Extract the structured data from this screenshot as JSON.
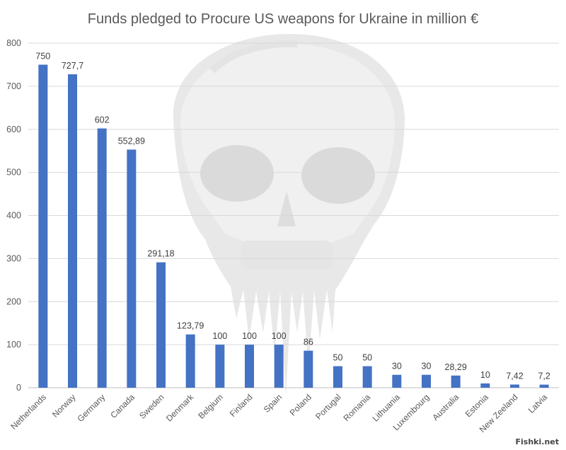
{
  "chart_data": {
    "type": "bar",
    "title": "Funds pledged to Procure US weapons for Ukraine in million €",
    "xlabel": "",
    "ylabel": "",
    "ylim": [
      0,
      800
    ],
    "yticks": [
      0,
      100,
      200,
      300,
      400,
      500,
      600,
      700,
      800
    ],
    "grid": true,
    "legend": "none",
    "bar_color": "#4472c4",
    "categories": [
      "Netherlands",
      "Norway",
      "Germany",
      "Canada",
      "Sweden",
      "Denmark",
      "Belgium",
      "Finland",
      "Spain",
      "Poland",
      "Portugal",
      "Romania",
      "Lithuania",
      "Luxembourg",
      "Australia",
      "Estonia",
      "New Zeeland",
      "Latvia"
    ],
    "values": [
      750,
      727.7,
      602,
      552.89,
      291.18,
      123.79,
      100,
      100,
      100,
      86,
      50,
      50,
      30,
      30,
      28.29,
      10,
      7.42,
      7.2
    ],
    "value_labels": [
      "750",
      "727,7",
      "602",
      "552,89",
      "291,18",
      "123,79",
      "100",
      "100",
      "100",
      "86",
      "50",
      "50",
      "30",
      "30",
      "28,29",
      "10",
      "7,42",
      "7,2"
    ]
  },
  "watermark": {
    "text": "Fishki.net",
    "background_image": "skull-graphic"
  }
}
